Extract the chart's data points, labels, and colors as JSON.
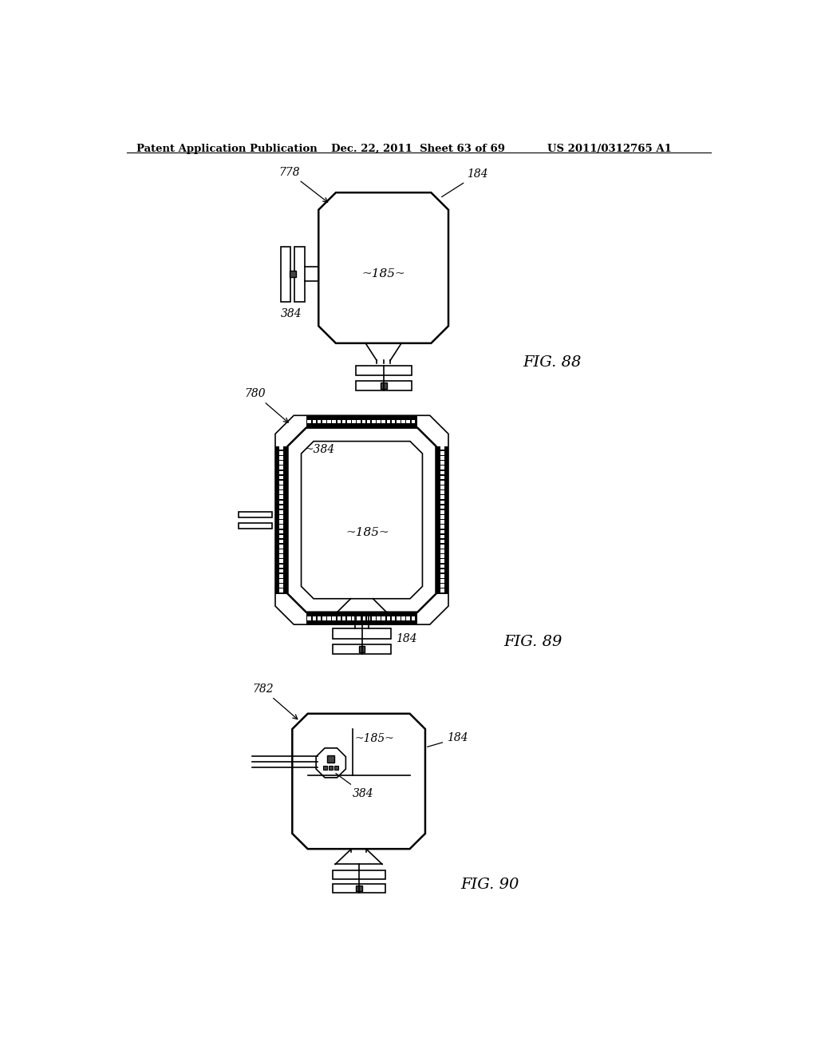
{
  "bg_color": "#ffffff",
  "header_left": "Patent Application Publication",
  "header_mid": "Dec. 22, 2011  Sheet 63 of 69",
  "header_right": "US 2011/0312765 A1",
  "fig88_label": "FIG. 88",
  "fig89_label": "FIG. 89",
  "fig90_label": "FIG. 90",
  "lc": "#000000",
  "dark_fill": "#444444",
  "gray_fill": "#888888",
  "dot_color": "#555555"
}
